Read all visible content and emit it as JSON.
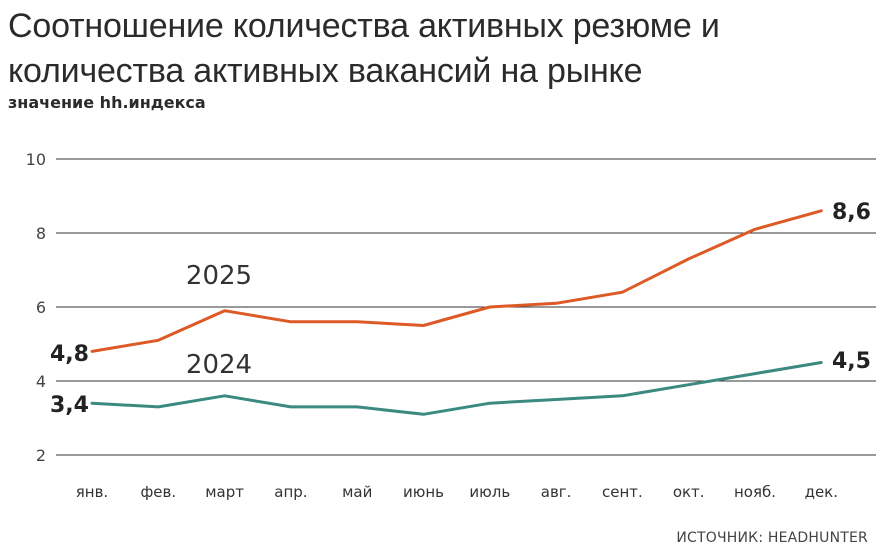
{
  "header": {
    "title": "Соотношение количества активных резюме и количества активных вакансий на рынке",
    "subtitle": "значение hh.индекса",
    "source": "ИСТОЧНИК: HEADHUNTER"
  },
  "chart_data": {
    "type": "line",
    "title": "Соотношение количества активных резюме и количества активных вакансий на рынке",
    "ylabel": "значение hh.индекса",
    "xlabel": "",
    "categories": [
      "янв.",
      "фев.",
      "март",
      "апр.",
      "май",
      "июнь",
      "июль",
      "авг.",
      "сент.",
      "окт.",
      "нояб.",
      "дек."
    ],
    "ylim": [
      2,
      10
    ],
    "yticks": [
      "2",
      "4",
      "6",
      "8",
      "10"
    ],
    "grid": true,
    "series": [
      {
        "name": "2025",
        "color": "#dd5a26",
        "values": [
          4.8,
          5.1,
          5.9,
          5.6,
          5.6,
          5.5,
          6.0,
          6.1,
          6.4,
          7.3,
          8.1,
          8.6
        ],
        "start_label": "4,8",
        "end_label": "8,6"
      },
      {
        "name": "2024",
        "color": "#3a8a80",
        "values": [
          3.4,
          3.3,
          3.6,
          3.3,
          3.3,
          3.1,
          3.4,
          3.5,
          3.6,
          3.9,
          4.2,
          4.5
        ],
        "start_label": "3,4",
        "end_label": "4,5"
      }
    ]
  }
}
